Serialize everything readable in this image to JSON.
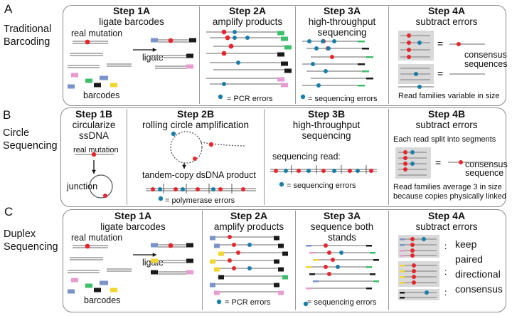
{
  "rows": [
    {
      "letter": "A",
      "label_lines": [
        "Traditional",
        "Barcoding"
      ],
      "steps": [
        {
          "title": "Step 1A",
          "sub": [
            "ligate barcodes"
          ]
        },
        {
          "title": "Step 2A",
          "sub": [
            "amplify products"
          ]
        },
        {
          "title": "Step 3A",
          "sub": [
            "high-throughput",
            "sequencing"
          ]
        },
        {
          "title": "Step 4A",
          "sub": [
            "subtract errors"
          ]
        }
      ],
      "notes": {
        "real_mutation": "real mutation",
        "ligate": "ligate",
        "barcodes": "barcodes",
        "pcr_errors": "= PCR errors",
        "seq_errors": "= sequencing errors",
        "consensus": [
          "consensus",
          "sequences"
        ],
        "families": "Read families variable in size"
      }
    },
    {
      "letter": "B",
      "label_lines": [
        "Circle",
        "Sequencing"
      ],
      "steps": [
        {
          "title": "Step 1B",
          "sub": [
            "circularize",
            "ssDNA"
          ]
        },
        {
          "title": "Step 2B",
          "sub": [
            "rolling circle amplification"
          ]
        },
        {
          "title": "Step 3B",
          "sub": [
            "high-throughput",
            "sequencing"
          ]
        },
        {
          "title": "Step 4B",
          "sub": [
            "subtract errors"
          ]
        }
      ],
      "notes": {
        "real_mutation": "real mutation",
        "junction": "junction",
        "tandem": "tandem-copy dsDNA product",
        "poly_errors": "= polymerase errors",
        "seq_read": "sequencing read:",
        "seq_errors": "= sequencing errors",
        "split": "Each read split into segments",
        "consensus": [
          "consensus",
          "sequence"
        ],
        "families": [
          "Read families average 3 in size",
          "because copies physically linked"
        ]
      }
    },
    {
      "letter": "C",
      "label_lines": [
        "Duplex",
        "Sequencing"
      ],
      "steps": [
        {
          "title": "Step 1A",
          "sub": [
            "ligate barcodes"
          ]
        },
        {
          "title": "Step 2A",
          "sub": [
            "amplify products"
          ]
        },
        {
          "title": "Step 3A",
          "sub": [
            "sequence both",
            "stands"
          ]
        },
        {
          "title": "Step 4A",
          "sub": [
            "subtract errors"
          ]
        }
      ],
      "notes": {
        "real_mutation": "real mutation",
        "ligate": "ligate",
        "barcodes": "barcodes",
        "pcr_errors": "= PCR errors",
        "seq_errors": "= sequencing errors",
        "keep": [
          "keep",
          "paired",
          "directional",
          "consensus"
        ]
      }
    }
  ],
  "colors": {
    "mutation": "#e8262e",
    "error": "#1a7fa8",
    "strand": "#9a9a9a",
    "tag_green": "#3dbf6a",
    "tag_pink": "#e79bd0",
    "tag_blue": "#7a93c9",
    "tag_yellow": "#f2d530",
    "tag_black": "#1a1a1a",
    "panel_border": "#8a8a8a",
    "family_box": "#d9d9d9"
  }
}
